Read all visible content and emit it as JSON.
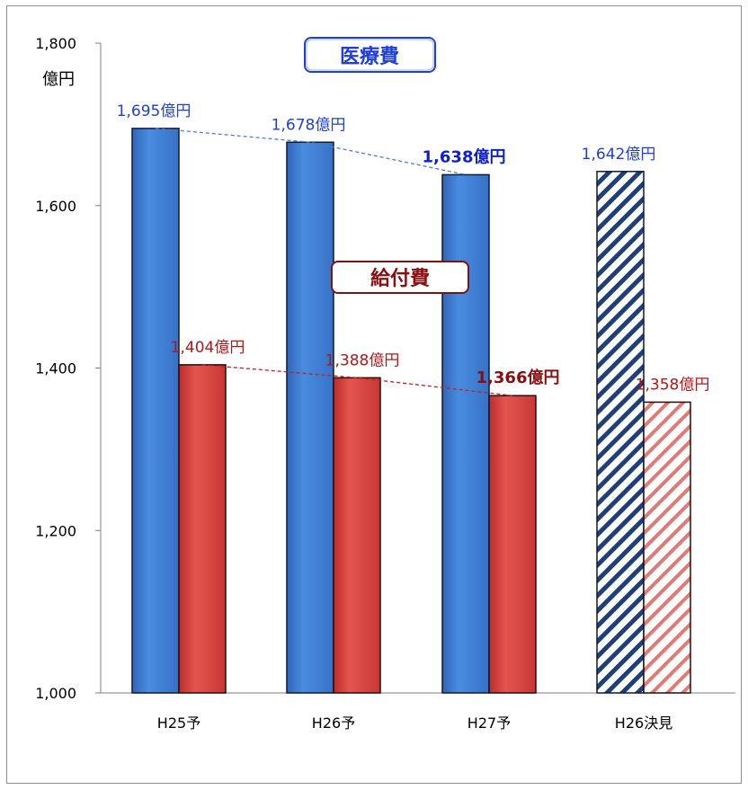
{
  "chart_data": {
    "type": "bar",
    "ylabel": "億円",
    "ylim": [
      1000,
      1800
    ],
    "yticks": [
      1000,
      1200,
      1400,
      1600,
      1800
    ],
    "ytick_labels": [
      "1,000",
      "1,200",
      "1,400",
      "1,600",
      "1,800"
    ],
    "categories": [
      "H25予",
      "H26予",
      "H27予",
      "H26決見"
    ],
    "grid": false,
    "series": [
      {
        "name": "医療費",
        "values": [
          1695,
          1678,
          1638,
          1642
        ],
        "labels": [
          "1,695億円",
          "1,678億円",
          "1,638億円",
          "1,642億円"
        ],
        "color": "#3f7fd6",
        "label_color": "#1f3fd8",
        "emphasis_index": 2,
        "hatched_index": 3
      },
      {
        "name": "給付費",
        "values": [
          1404,
          1388,
          1366,
          1358
        ],
        "labels": [
          "1,404億円",
          "1,388億円",
          "1,366億円",
          "1,358億円"
        ],
        "color": "#d8403c",
        "label_color": "#b01818",
        "emphasis_index": 2,
        "hatched_index": 3
      }
    ],
    "trend_lines": "dashed lines connecting tops of first three bars of each series"
  }
}
